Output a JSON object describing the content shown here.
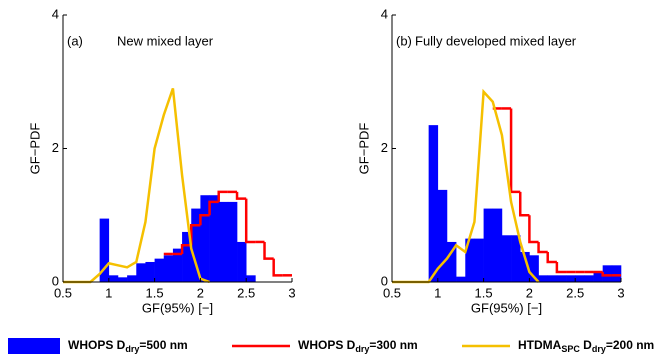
{
  "chart_data": [
    {
      "type": "histogram",
      "annotation": "(a)",
      "subtitle": "New mixed layer",
      "xlabel": "GF(95%) [−]",
      "ylabel": "GF−PDF",
      "xlim": [
        0.5,
        3
      ],
      "ylim": [
        0,
        4
      ],
      "xticks": [
        0.5,
        1,
        1.5,
        2,
        2.5,
        3
      ],
      "yticks": [
        0,
        2,
        4
      ],
      "series": [
        {
          "name": [
            "WHOPS D",
            "dry",
            "=500 nm"
          ],
          "color": "#0000ff",
          "style": "bar",
          "bins": [
            0.9,
            1.0,
            1.1,
            1.2,
            1.3,
            1.4,
            1.5,
            1.6,
            1.7,
            1.8,
            1.9,
            2.0,
            2.1,
            2.2,
            2.3,
            2.4,
            2.5,
            2.6
          ],
          "values": [
            0.95,
            0.1,
            0.07,
            0.1,
            0.28,
            0.3,
            0.35,
            0.4,
            0.5,
            0.75,
            1.1,
            1.3,
            1.3,
            1.2,
            1.2,
            0.6,
            0.1
          ]
        },
        {
          "name": [
            "WHOPS D",
            "dry",
            "=300 nm"
          ],
          "color": "#ff0000",
          "style": "step",
          "bins": [
            1.6,
            1.7,
            1.8,
            1.9,
            2.0,
            2.1,
            2.2,
            2.3,
            2.4,
            2.5,
            2.6,
            2.7,
            2.8,
            2.9,
            3.0
          ],
          "values": [
            0.42,
            0.42,
            0.55,
            0.85,
            1.0,
            1.2,
            1.35,
            1.35,
            1.25,
            0.6,
            0.6,
            0.35,
            0.1,
            0.1
          ]
        },
        {
          "name": [
            "HTDMA",
            "SPC",
            " D",
            "dry",
            "=200 nm"
          ],
          "color": "#f5c000",
          "style": "line",
          "x": [
            0.5,
            0.8,
            0.9,
            1.0,
            1.1,
            1.2,
            1.3,
            1.4,
            1.5,
            1.6,
            1.7,
            1.8,
            1.9,
            2.0,
            2.1
          ],
          "values": [
            0,
            0,
            0.12,
            0.28,
            0.25,
            0.22,
            0.3,
            0.9,
            2.0,
            2.5,
            2.9,
            1.6,
            0.5,
            0.05,
            0
          ]
        }
      ]
    },
    {
      "type": "histogram",
      "annotation": "(b)",
      "subtitle": "Fully developed mixed layer",
      "xlabel": "GF(95%) [−]",
      "ylabel": "GF−PDF",
      "xlim": [
        0.5,
        3
      ],
      "ylim": [
        0,
        4
      ],
      "xticks": [
        0.5,
        1,
        1.5,
        2,
        2.5,
        3
      ],
      "yticks": [
        0,
        2,
        4
      ],
      "series": [
        {
          "name": [
            "WHOPS D",
            "dry",
            "=500 nm"
          ],
          "color": "#0000ff",
          "style": "bar",
          "bins": [
            0.9,
            1.0,
            1.1,
            1.2,
            1.3,
            1.4,
            1.5,
            1.6,
            1.7,
            1.8,
            1.9,
            2.0,
            2.1,
            2.2,
            2.3,
            2.4,
            2.5,
            2.6,
            2.7,
            2.8,
            2.9,
            3.0
          ],
          "values": [
            2.35,
            1.38,
            0.6,
            0.08,
            0.65,
            0.65,
            1.1,
            1.1,
            0.7,
            0.7,
            0.45,
            0.4,
            0.1,
            0.1,
            0.1,
            0.1,
            0.1,
            0.1,
            0.15,
            0.25,
            0.25
          ]
        },
        {
          "name": [
            "WHOPS D",
            "dry",
            "=300 nm"
          ],
          "color": "#ff0000",
          "style": "step",
          "bins": [
            1.6,
            1.7,
            1.8,
            1.9,
            2.0,
            2.1,
            2.2,
            2.3,
            2.4,
            2.5,
            2.6,
            2.7,
            2.8,
            2.9,
            3.0
          ],
          "values": [
            2.6,
            2.6,
            1.35,
            1.0,
            0.6,
            0.45,
            0.3,
            0.15,
            0.15,
            0.15,
            0.15,
            0.15,
            0.1,
            0.1
          ]
        },
        {
          "name": [
            "HTDMA",
            "SPC",
            " D",
            "dry",
            "=200 nm"
          ],
          "color": "#f5c000",
          "style": "line",
          "x": [
            0.5,
            0.9,
            1.0,
            1.1,
            1.2,
            1.3,
            1.4,
            1.5,
            1.6,
            1.7,
            1.8,
            1.9,
            2.0,
            2.1
          ],
          "values": [
            0,
            0,
            0.2,
            0.35,
            0.55,
            0.45,
            0.9,
            2.85,
            2.7,
            2.2,
            1.2,
            0.6,
            0.15,
            0
          ]
        }
      ]
    }
  ]
}
